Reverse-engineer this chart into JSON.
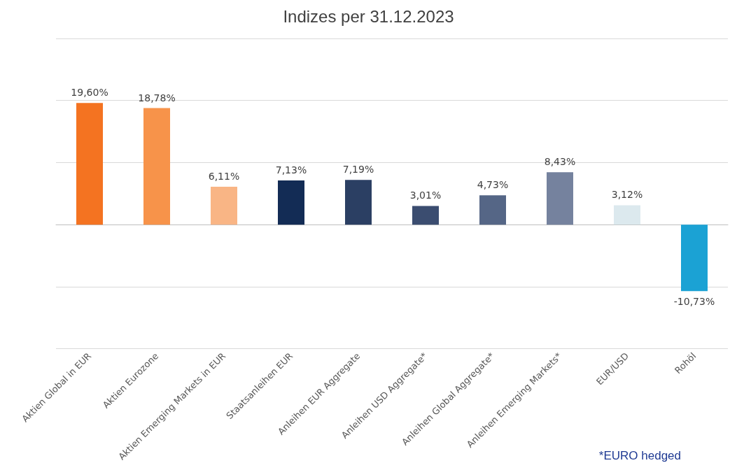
{
  "chart_data": {
    "type": "bar",
    "title": "Indizes per 31.12.2023",
    "categories": [
      "Aktien Global in EUR",
      "Aktien Eurozone",
      "Aktien Emerging Markets in EUR",
      "Staatsanleihen EUR",
      "Anleihen EUR Aggregate",
      "Anleihen USD Aggregate*",
      "Anleihen Global Aggregate*",
      "Anleihen Emerging Markets*",
      "EUR/USD",
      "Rohöl"
    ],
    "values": [
      19.6,
      18.78,
      6.11,
      7.13,
      7.19,
      3.01,
      4.73,
      8.43,
      3.12,
      -10.73
    ],
    "value_labels": [
      "19,60%",
      "18,78%",
      "6,11%",
      "7,13%",
      "7,19%",
      "3,01%",
      "4,73%",
      "8,43%",
      "3,12%",
      "-10,73%"
    ],
    "colors": [
      "#f47321",
      "#f7934a",
      "#f9b585",
      "#132c55",
      "#2b3f63",
      "#3b4d70",
      "#556686",
      "#75829e",
      "#dce9ee",
      "#1ba2d4"
    ],
    "ylim": [
      -20,
      30
    ],
    "yticks": [
      {
        "value": -20,
        "label": null
      },
      {
        "value": -10,
        "label": null
      },
      {
        "value": 0,
        "label": null
      },
      {
        "value": 10,
        "label": null
      },
      {
        "value": 20,
        "label": null
      },
      {
        "value": 30,
        "label": null
      }
    ],
    "grid": "y",
    "annotations": [
      "*EURO hedged"
    ]
  }
}
